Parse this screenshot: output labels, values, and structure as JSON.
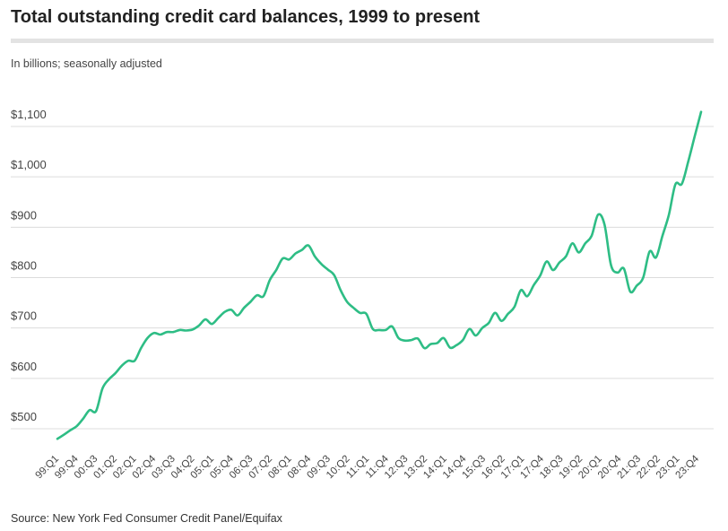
{
  "chart_data": {
    "type": "line",
    "title": "Total outstanding credit card balances, 1999 to present",
    "subtitle": "In billions; seasonally adjusted",
    "source": "Source: New York Fed Consumer Credit Panel/Equifax",
    "ylim": [
      450,
      1150
    ],
    "yticks": [
      500,
      600,
      700,
      800,
      900,
      1000,
      1100
    ],
    "ytick_labels": [
      "$500",
      "$600",
      "$700",
      "$800",
      "$900",
      "$1,000",
      "$1,100"
    ],
    "grid": true,
    "line_color": "#2ebd85",
    "x_tick_labels": [
      "99:Q1",
      "99:Q4",
      "00:Q3",
      "01:Q2",
      "02:Q1",
      "02:Q4",
      "03:Q3",
      "04:Q2",
      "05:Q1",
      "05:Q4",
      "06:Q3",
      "07:Q2",
      "08:Q1",
      "08:Q4",
      "09:Q3",
      "10:Q2",
      "11:Q1",
      "11:Q4",
      "12:Q3",
      "13:Q2",
      "14:Q1",
      "14:Q4",
      "15:Q3",
      "16:Q2",
      "17:Q1",
      "17:Q4",
      "18:Q3",
      "19:Q2",
      "20:Q1",
      "20:Q4",
      "21:Q3",
      "22:Q2",
      "23:Q1",
      "23:Q4"
    ],
    "series": [
      {
        "values": [
          480,
          488,
          497,
          505,
          520,
          537,
          535,
          580,
          598,
          610,
          625,
          635,
          635,
          660,
          680,
          690,
          687,
          692,
          692,
          696,
          695,
          697,
          705,
          717,
          708,
          720,
          732,
          736,
          725,
          740,
          752,
          765,
          763,
          795,
          815,
          838,
          836,
          848,
          855,
          864,
          842,
          827,
          816,
          805,
          775,
          752,
          740,
          730,
          728,
          698,
          696,
          696,
          703,
          680,
          675,
          676,
          679,
          660,
          668,
          670,
          680,
          661,
          666,
          676,
          698,
          685,
          700,
          710,
          730,
          714,
          728,
          742,
          775,
          763,
          785,
          804,
          832,
          815,
          830,
          842,
          868,
          850,
          868,
          883,
          925,
          905,
          825,
          810,
          818,
          772,
          784,
          800,
          852,
          840,
          883,
          925,
          985,
          986,
          1030,
          1080,
          1129
        ]
      }
    ]
  }
}
